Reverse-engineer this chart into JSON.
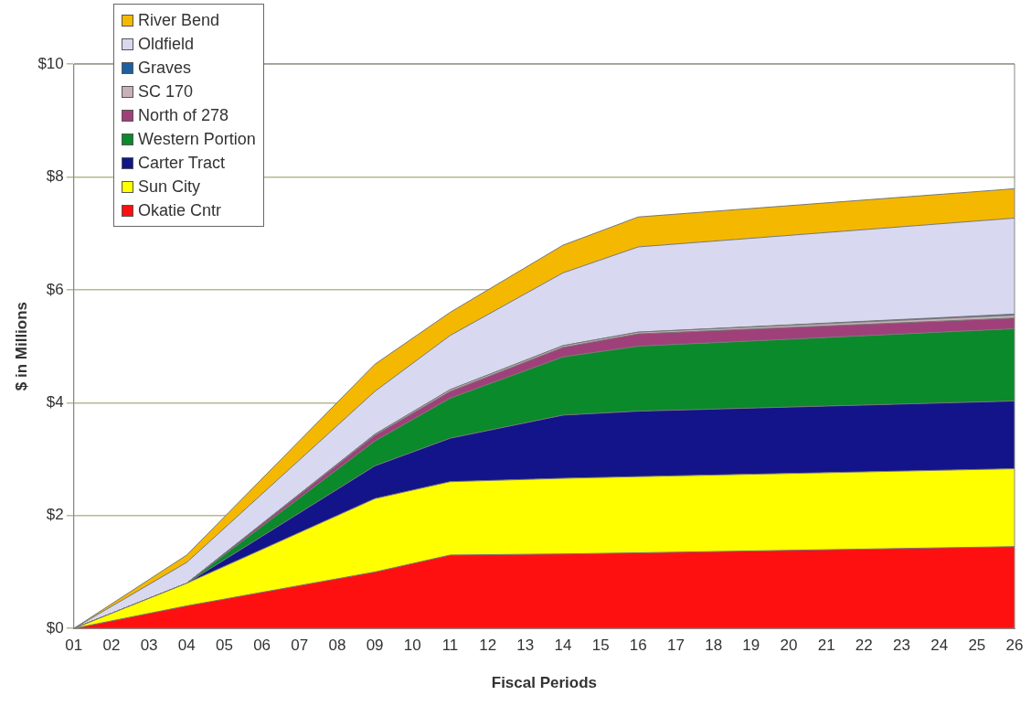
{
  "chart_data": {
    "type": "area",
    "stacked": true,
    "xlabel": "Fiscal Periods",
    "ylabel": "$ in Millions",
    "x": [
      1,
      4,
      9,
      11,
      14,
      16,
      26
    ],
    "xlim": [
      1,
      26
    ],
    "xticks": [
      {
        "value": 1,
        "label": "01"
      },
      {
        "value": 2,
        "label": "02"
      },
      {
        "value": 3,
        "label": "03"
      },
      {
        "value": 4,
        "label": "04"
      },
      {
        "value": 5,
        "label": "05"
      },
      {
        "value": 6,
        "label": "06"
      },
      {
        "value": 7,
        "label": "07"
      },
      {
        "value": 8,
        "label": "08"
      },
      {
        "value": 9,
        "label": "09"
      },
      {
        "value": 10,
        "label": "10"
      },
      {
        "value": 11,
        "label": "11"
      },
      {
        "value": 12,
        "label": "12"
      },
      {
        "value": 13,
        "label": "13"
      },
      {
        "value": 14,
        "label": "14"
      },
      {
        "value": 15,
        "label": "15"
      },
      {
        "value": 16,
        "label": "16"
      },
      {
        "value": 17,
        "label": "17"
      },
      {
        "value": 18,
        "label": "18"
      },
      {
        "value": 19,
        "label": "19"
      },
      {
        "value": 20,
        "label": "20"
      },
      {
        "value": 21,
        "label": "21"
      },
      {
        "value": 22,
        "label": "22"
      },
      {
        "value": 23,
        "label": "23"
      },
      {
        "value": 24,
        "label": "24"
      },
      {
        "value": 25,
        "label": "25"
      },
      {
        "value": 26,
        "label": "26"
      }
    ],
    "ylim": [
      0,
      10
    ],
    "yticks": [
      {
        "value": 0,
        "label": "$0"
      },
      {
        "value": 2,
        "label": "$2"
      },
      {
        "value": 4,
        "label": "$4"
      },
      {
        "value": 6,
        "label": "$6"
      },
      {
        "value": 8,
        "label": "$8"
      },
      {
        "value": 10,
        "label": "$10"
      }
    ],
    "grid": "y",
    "legend": "top left",
    "series": [
      {
        "name": "Okatie Cntr",
        "color": "#ff1010",
        "values": [
          0,
          0.4,
          1.0,
          1.3,
          1.32,
          1.34,
          1.45
        ]
      },
      {
        "name": "Sun City",
        "color": "#ffff00",
        "values": [
          0,
          0.4,
          1.3,
          1.3,
          1.34,
          1.35,
          1.38
        ]
      },
      {
        "name": "Carter Tract",
        "color": "#14148a",
        "values": [
          0,
          0,
          0.58,
          0.77,
          1.12,
          1.16,
          1.2
        ]
      },
      {
        "name": "Western Portion",
        "color": "#0a8a2a",
        "values": [
          0,
          0,
          0.44,
          0.71,
          1.03,
          1.15,
          1.28
        ]
      },
      {
        "name": "North of 278",
        "color": "#a0407a",
        "values": [
          0,
          0,
          0.1,
          0.12,
          0.17,
          0.22,
          0.19
        ]
      },
      {
        "name": "SC 170",
        "color": "#c8b0b8",
        "values": [
          0,
          0,
          0.02,
          0.03,
          0.03,
          0.03,
          0.05
        ]
      },
      {
        "name": "Graves",
        "color": "#1f5fa0",
        "values": [
          0,
          0,
          0,
          0,
          0,
          0,
          0.02
        ]
      },
      {
        "name": "Oldfield",
        "color": "#d8d8f0",
        "values": [
          0,
          0.37,
          0.76,
          0.96,
          1.29,
          1.51,
          1.7
        ]
      },
      {
        "name": "River Bend",
        "color": "#f5b800",
        "values": [
          0,
          0.13,
          0.48,
          0.41,
          0.49,
          0.53,
          0.52
        ]
      }
    ]
  }
}
